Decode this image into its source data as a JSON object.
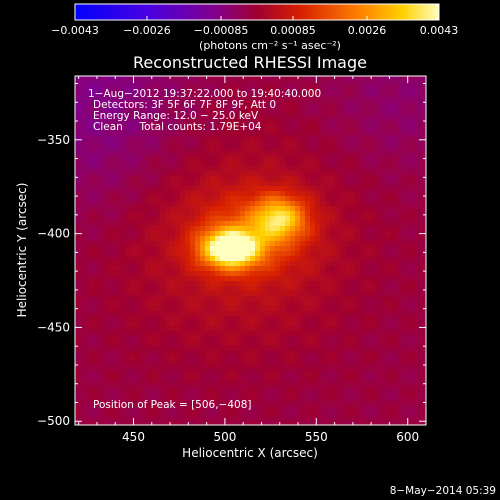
{
  "colorbar": {
    "tick_labels": [
      "−0.0043",
      "−0.0026",
      "−0.00085",
      "0.00085",
      "0.0026",
      "0.0043"
    ],
    "tick_values": [
      -0.0043,
      -0.0026,
      -0.00085,
      0.00085,
      0.0026,
      0.0043
    ],
    "unit_label": "(photons cm⁻² s⁻¹ asec⁻²)",
    "range": [
      -0.0043,
      0.0043
    ]
  },
  "chart_data": {
    "type": "heatmap",
    "title": "Reconstructed RHESSI Image",
    "xlabel": "Heliocentric X (arcsec)",
    "ylabel": "Heliocentric Y (arcsec)",
    "xlim": [
      418,
      610
    ],
    "ylim": [
      -502,
      -316
    ],
    "xticks": [
      450,
      500,
      550,
      600
    ],
    "xtick_labels": [
      "450",
      "500",
      "550",
      "600"
    ],
    "yticks": [
      -350,
      -400,
      -450,
      -500
    ],
    "ytick_labels": [
      "−350",
      "−400",
      "−450",
      "−500"
    ],
    "colormap": "hot",
    "sources": [
      {
        "x": 503,
        "y": -408,
        "sx": 11,
        "sy": 7,
        "amp": 0.0046
      },
      {
        "x": 530,
        "y": -392,
        "sx": 10,
        "sy": 8,
        "amp": 0.0028
      },
      {
        "x": 515,
        "y": -400,
        "sx": 22,
        "sy": 16,
        "amp": 0.0012
      },
      {
        "x": 506,
        "y": -405,
        "sx": 45,
        "sy": 40,
        "amp": 0.00075
      }
    ],
    "background_value": -0.0002,
    "annotations": [
      "1−Aug−2012 19:37:22.000 to 19:40:40.000",
      "Detectors: 3F 5F 6F 7F 8F 9F, Att 0",
      "Energy Range: 12.0 − 25.0 keV",
      "Clean     Total counts: 1.79E+04"
    ],
    "peak_label": "Position of Peak = [506,−408]",
    "peak": [
      506,
      -408
    ]
  },
  "footer": {
    "timestamp": "8−May−2014 05:39"
  }
}
